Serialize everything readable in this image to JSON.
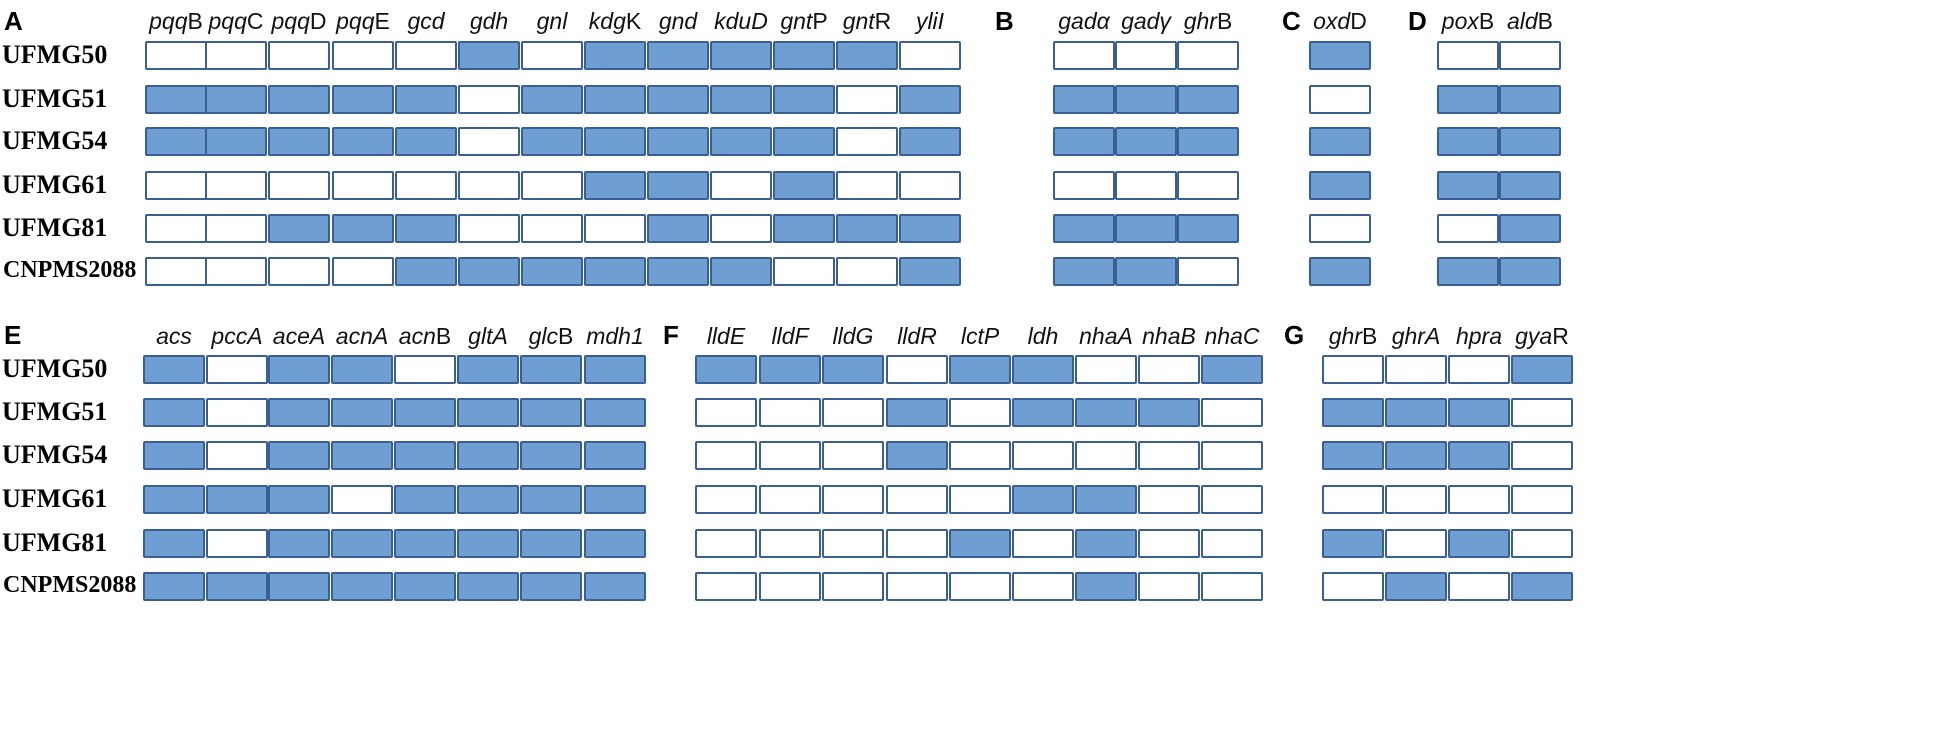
{
  "colors": {
    "present": "#6f9ed3",
    "absent": "#ffffff",
    "border": "#3a5f93"
  },
  "panels": [
    {
      "letter": "A",
      "genes": [
        [
          "pqq",
          "B"
        ],
        [
          "pqq",
          "C"
        ],
        [
          "pqq",
          "D"
        ],
        [
          "pqq",
          "E"
        ],
        [
          "gcd",
          ""
        ],
        [
          "gdh",
          ""
        ],
        [
          "gnl",
          ""
        ],
        [
          "kdg",
          "K"
        ],
        [
          "gnd",
          ""
        ],
        [
          "kduD",
          ""
        ],
        [
          "gnt",
          "P"
        ],
        [
          "gnt",
          "R"
        ],
        [
          "yliI",
          ""
        ]
      ],
      "rows": [
        [
          0,
          0,
          0,
          0,
          0,
          1,
          0,
          1,
          1,
          1,
          1,
          1,
          0
        ],
        [
          1,
          1,
          1,
          1,
          1,
          0,
          1,
          1,
          1,
          1,
          1,
          0,
          1
        ],
        [
          1,
          1,
          1,
          1,
          1,
          0,
          1,
          1,
          1,
          1,
          1,
          0,
          1
        ],
        [
          0,
          0,
          0,
          0,
          0,
          0,
          0,
          1,
          1,
          0,
          1,
          0,
          0
        ],
        [
          0,
          0,
          1,
          1,
          1,
          0,
          0,
          0,
          1,
          0,
          1,
          1,
          1
        ],
        [
          0,
          0,
          0,
          0,
          1,
          1,
          1,
          1,
          1,
          1,
          0,
          0,
          1
        ]
      ]
    },
    {
      "letter": "B",
      "genes": [
        [
          "gadα",
          ""
        ],
        [
          "gadγ",
          ""
        ],
        [
          "ghr",
          "B"
        ]
      ],
      "rows": [
        [
          0,
          0,
          0
        ],
        [
          1,
          1,
          1
        ],
        [
          1,
          1,
          1
        ],
        [
          0,
          0,
          0
        ],
        [
          1,
          1,
          1
        ],
        [
          1,
          1,
          0
        ]
      ]
    },
    {
      "letter": "C",
      "genes": [
        [
          "oxd",
          "D"
        ]
      ],
      "rows": [
        [
          1
        ],
        [
          0
        ],
        [
          1
        ],
        [
          1
        ],
        [
          0
        ],
        [
          1
        ]
      ]
    },
    {
      "letter": "D",
      "genes": [
        [
          "pox",
          "B"
        ],
        [
          "ald",
          "B"
        ]
      ],
      "rows": [
        [
          0,
          0
        ],
        [
          1,
          1
        ],
        [
          1,
          1
        ],
        [
          1,
          1
        ],
        [
          0,
          1
        ],
        [
          1,
          1
        ]
      ]
    },
    {
      "letter": "E",
      "genes": [
        [
          "acs",
          ""
        ],
        [
          "pccA",
          ""
        ],
        [
          "aceA",
          ""
        ],
        [
          "acnA",
          ""
        ],
        [
          "acn",
          "B"
        ],
        [
          "gltA",
          ""
        ],
        [
          "glc",
          "B"
        ],
        [
          "mdh1",
          ""
        ]
      ],
      "rows": [
        [
          1,
          0,
          1,
          1,
          0,
          1,
          1,
          1
        ],
        [
          1,
          0,
          1,
          1,
          1,
          1,
          1,
          1
        ],
        [
          1,
          0,
          1,
          1,
          1,
          1,
          1,
          1
        ],
        [
          1,
          1,
          1,
          0,
          1,
          1,
          1,
          1
        ],
        [
          1,
          0,
          1,
          1,
          1,
          1,
          1,
          1
        ],
        [
          1,
          1,
          1,
          1,
          1,
          1,
          1,
          1
        ]
      ]
    },
    {
      "letter": "F",
      "genes": [
        [
          "lldE",
          ""
        ],
        [
          "lldF",
          ""
        ],
        [
          "lldG",
          ""
        ],
        [
          "lldR",
          ""
        ],
        [
          "lctP",
          ""
        ],
        [
          "ldh",
          ""
        ],
        [
          "nhaA",
          ""
        ],
        [
          "nhaB",
          ""
        ],
        [
          "nhaC",
          ""
        ]
      ],
      "rows": [
        [
          1,
          1,
          1,
          0,
          1,
          1,
          0,
          0,
          1
        ],
        [
          0,
          0,
          0,
          1,
          0,
          1,
          1,
          1,
          0
        ],
        [
          0,
          0,
          0,
          1,
          0,
          0,
          0,
          0,
          0
        ],
        [
          0,
          0,
          0,
          0,
          0,
          1,
          1,
          0,
          0
        ],
        [
          0,
          0,
          0,
          0,
          1,
          0,
          1,
          0,
          0
        ],
        [
          0,
          0,
          0,
          0,
          0,
          0,
          1,
          0,
          0
        ]
      ]
    },
    {
      "letter": "G",
      "genes": [
        [
          "ghr",
          "B"
        ],
        [
          "ghrA",
          ""
        ],
        [
          "hpra",
          ""
        ],
        [
          "gya",
          "R"
        ]
      ],
      "rows": [
        [
          0,
          0,
          0,
          1
        ],
        [
          1,
          1,
          1,
          0
        ],
        [
          1,
          1,
          1,
          0
        ],
        [
          0,
          0,
          0,
          0
        ],
        [
          1,
          0,
          1,
          0
        ],
        [
          0,
          1,
          0,
          1
        ]
      ]
    }
  ],
  "strains_top": [
    "UFMG50",
    "UFMG51",
    "UFMG54",
    "UFMG61",
    "UFMG81",
    "CNPMS2088"
  ],
  "strains_bottom": [
    "UFMG50",
    "UFMG51",
    "UFMG54",
    "UFMG61",
    "UFMG81",
    "CNPMS2088"
  ]
}
